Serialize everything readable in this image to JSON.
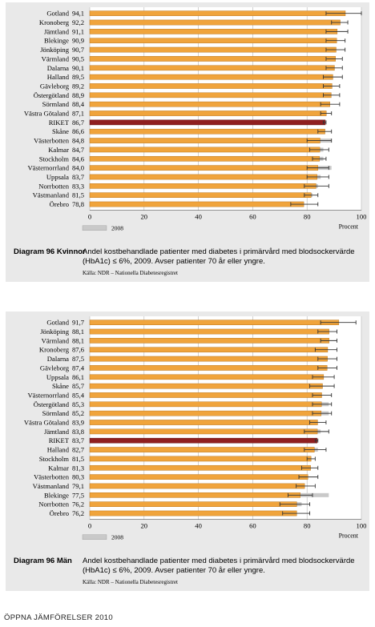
{
  "colors": {
    "bar": "#f0a43c",
    "bar_highlight": "#8f1f1f",
    "prev_year": "#c9c9c9",
    "whisker": "#333333"
  },
  "footer": "ÖPPNA JÄMFÖRELSER 2010",
  "chart_data": [
    {
      "type": "bar",
      "orientation": "horizontal",
      "title": "Diagram 96 Kvinnor",
      "caption": "Andel kostbehandlade patienter med diabetes i primärvård med blodsockervärde (HbA1c) ≤ 6%, 2009. Avser patienter 70 år eller yngre.",
      "source": "Källa: NDR – Nationella Diabetesregistret",
      "xlabel": "Procent",
      "xlim": [
        0,
        100
      ],
      "xticks": [
        0,
        20,
        40,
        60,
        80,
        100
      ],
      "legend": "2008",
      "highlight": "RIKET",
      "categories": [
        "Gotland",
        "Kronoberg",
        "Jämtland",
        "Blekinge",
        "Jönköping",
        "Värmland",
        "Dalarna",
        "Halland",
        "Gävleborg",
        "Östergötland",
        "Sörmland",
        "Västra Götaland",
        "RIKET",
        "Skåne",
        "Västerbotten",
        "Kalmar",
        "Stockholm",
        "Västernorrland",
        "Uppsala",
        "Norrbotten",
        "Västmanland",
        "Örebro"
      ],
      "value_labels": [
        "94,1",
        "92,2",
        "91,1",
        "90,9",
        "90,7",
        "90,5",
        "90,1",
        "89,5",
        "89,2",
        "88,9",
        "88,4",
        "87,1",
        "86,7",
        "86,6",
        "84,8",
        "84,7",
        "84,6",
        "84,0",
        "83,7",
        "83,3",
        "81,5",
        "78,8"
      ],
      "series": [
        {
          "name": "2009",
          "values": [
            94.1,
            92.2,
            91.1,
            90.9,
            90.7,
            90.5,
            90.1,
            89.5,
            89.2,
            88.9,
            88.4,
            87.1,
            86.7,
            86.6,
            84.8,
            84.7,
            84.6,
            84.0,
            83.7,
            83.3,
            81.5,
            78.8
          ]
        },
        {
          "name": "2008",
          "values": [
            86,
            88,
            86,
            87,
            86,
            86,
            87,
            87,
            88,
            84,
            88,
            85,
            85,
            84,
            89,
            86,
            86,
            89,
            85,
            84,
            82,
            77
          ]
        }
      ],
      "ci_low": [
        87,
        89,
        87,
        87,
        87,
        87,
        87,
        86,
        86,
        86,
        85,
        85,
        86,
        84,
        80,
        81,
        82,
        80,
        80,
        79,
        79,
        74
      ],
      "ci_high": [
        100,
        95,
        95,
        94,
        94,
        93,
        93,
        93,
        92,
        92,
        92,
        89,
        87,
        89,
        89,
        88,
        87,
        88,
        88,
        88,
        84,
        84
      ]
    },
    {
      "type": "bar",
      "orientation": "horizontal",
      "title": "Diagram 96 Män",
      "caption": "Andel kostbehandlade patienter med diabetes i primärvård med blodsockervärde (HbA1c) ≤ 6%, 2009. Avser patienter 70 år eller yngre.",
      "source": "Källa: NDR – Nationella Diabetesregistret",
      "xlabel": "Procent",
      "xlim": [
        0,
        100
      ],
      "xticks": [
        0,
        20,
        40,
        60,
        80,
        100
      ],
      "legend": "2008",
      "highlight": "RIKET",
      "categories": [
        "Gotland",
        "Jönköping",
        "Värmland",
        "Kronoberg",
        "Dalarna",
        "Gävleborg",
        "Uppsala",
        "Skåne",
        "Västernorrland",
        "Östergötland",
        "Sörmland",
        "Västra Götaland",
        "Jämtland",
        "RIKET",
        "Halland",
        "Stockholm",
        "Kalmar",
        "Västerbotten",
        "Västmanland",
        "Blekinge",
        "Norrbotten",
        "Örebro"
      ],
      "value_labels": [
        "91,7",
        "88,1",
        "88,1",
        "87,6",
        "87,5",
        "87,4",
        "86,1",
        "85,7",
        "85,4",
        "85,3",
        "85,2",
        "83,9",
        "83,8",
        "83,7",
        "82,7",
        "81,5",
        "81,3",
        "80,3",
        "79,1",
        "77,5",
        "76,2",
        "76,2"
      ],
      "series": [
        {
          "name": "2009",
          "values": [
            91.7,
            88.1,
            88.1,
            87.6,
            87.5,
            87.4,
            86.1,
            85.7,
            85.4,
            85.3,
            85.2,
            83.9,
            83.8,
            83.7,
            82.7,
            81.5,
            81.3,
            80.3,
            79.1,
            77.5,
            76.2,
            76.2
          ]
        },
        {
          "name": "2008",
          "values": [
            87,
            86,
            86,
            87,
            86,
            86,
            82,
            82,
            80,
            88,
            88,
            82,
            85,
            83,
            84,
            80,
            80,
            80,
            79,
            88,
            78,
            75
          ]
        }
      ],
      "ci_low": [
        85,
        84,
        85,
        83,
        84,
        84,
        82,
        81,
        82,
        82,
        82,
        81,
        79,
        83,
        79,
        80,
        78,
        77,
        76,
        73,
        70,
        71
      ],
      "ci_high": [
        98,
        91,
        91,
        91,
        91,
        91,
        90,
        90,
        89,
        89,
        89,
        87,
        88,
        84,
        87,
        83,
        84,
        84,
        83,
        82,
        81,
        81
      ]
    }
  ]
}
